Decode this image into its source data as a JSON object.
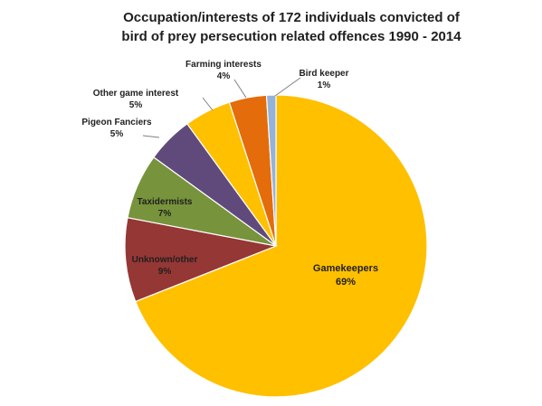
{
  "chart_data": {
    "type": "pie",
    "title_lines": [
      "Occupation/interests of 172 individuals convicted of",
      "bird of prey persecution related offences 1990 - 2014"
    ],
    "start_angle_deg": 0,
    "direction": "clockwise",
    "slices": [
      {
        "label": "Gamekeepers",
        "percent_label": "69%",
        "value": 69,
        "color": "#FFC000"
      },
      {
        "label": "Unknown/other",
        "percent_label": "9%",
        "value": 9,
        "color": "#953735"
      },
      {
        "label": "Taxidermists",
        "percent_label": "7%",
        "value": 7,
        "color": "#77933C"
      },
      {
        "label": "Pigeon Fanciers",
        "percent_label": "5%",
        "value": 5,
        "color": "#604A7B"
      },
      {
        "label": "Other game interest",
        "percent_label": "5%",
        "value": 5,
        "color": "#FFC000"
      },
      {
        "label": "Farming interests",
        "percent_label": "4%",
        "value": 4,
        "color": "#E46C0A"
      },
      {
        "label": "Bird keeper",
        "percent_label": "1%",
        "value": 1,
        "color": "#95B3D7"
      }
    ]
  }
}
